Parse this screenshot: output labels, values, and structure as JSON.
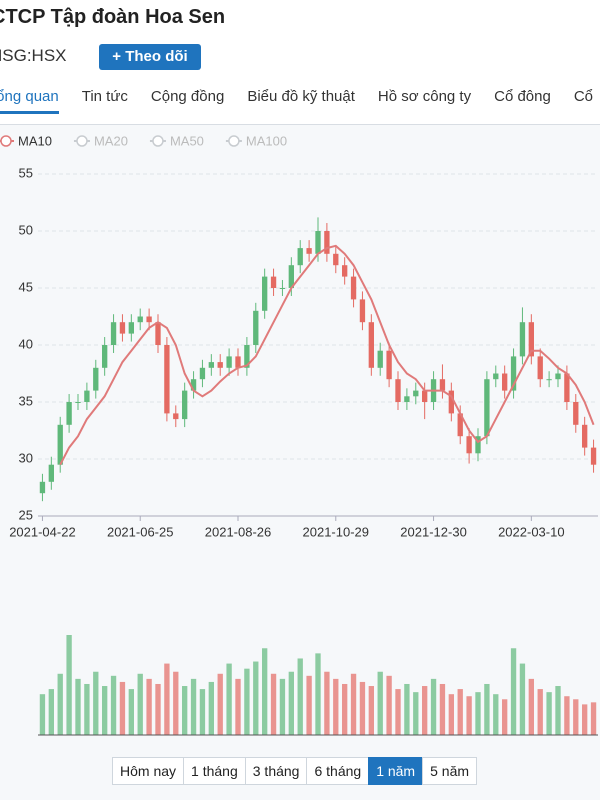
{
  "header": {
    "title": "CTCP Tập đoàn Hoa Sen",
    "ticker": "HSG:HSX",
    "follow_button": "Theo dõi"
  },
  "tabs": {
    "items": [
      "Tổng quan",
      "Tin tức",
      "Cộng đồng",
      "Biểu đồ kỹ thuật",
      "Hồ sơ công ty",
      "Cổ đông",
      "Cổ"
    ],
    "active": 0
  },
  "indicators": [
    {
      "name": "MA10",
      "active": true
    },
    {
      "name": "MA20",
      "active": false
    },
    {
      "name": "MA50",
      "active": false
    },
    {
      "name": "MA100",
      "active": false
    }
  ],
  "chart_data": {
    "type": "candlestick",
    "xlim": [
      -0.5,
      62.5
    ],
    "xticks": [
      {
        "value": 0,
        "label": "2021-04-22"
      },
      {
        "value": 11,
        "label": "2021-06-25"
      },
      {
        "value": 22,
        "label": "2021-08-26"
      },
      {
        "value": 33,
        "label": "2021-10-29"
      },
      {
        "value": 44,
        "label": "2021-12-30"
      },
      {
        "value": 55,
        "label": "2022-03-10"
      }
    ],
    "ylim": [
      25,
      55
    ],
    "yticks": [
      25,
      30,
      35,
      40,
      45,
      50,
      55
    ],
    "grid": true,
    "up_color": "#5fb87a",
    "down_color": "#e46a62",
    "open": [
      27,
      28,
      29.5,
      33,
      35,
      35,
      36,
      38,
      40,
      42,
      41,
      42,
      42.5,
      42,
      40,
      34,
      33.5,
      36,
      37,
      38,
      38.5,
      38,
      39,
      38,
      40,
      43,
      46,
      45,
      45,
      47,
      48.5,
      48,
      50,
      48,
      47,
      46,
      44,
      42,
      38,
      39.5,
      37,
      35,
      35.5,
      36,
      35,
      37,
      36,
      34,
      32,
      30.5,
      32,
      37,
      37.5,
      36,
      39,
      42,
      39,
      37,
      37,
      37.5,
      35,
      33,
      31
    ],
    "high": [
      28.7,
      30.2,
      33.7,
      35.7,
      35.7,
      36.7,
      38.7,
      40.7,
      42.7,
      42.7,
      42.7,
      43.2,
      43.2,
      42.7,
      40.7,
      34.7,
      36.7,
      37.7,
      38.7,
      39.2,
      39.2,
      39.7,
      39.7,
      40.7,
      43.7,
      46.7,
      46.7,
      45.7,
      47.7,
      49.2,
      49.2,
      51.2,
      50.7,
      48.7,
      47.7,
      46.7,
      44.7,
      42.7,
      40.2,
      40.2,
      37.7,
      36.2,
      36.7,
      36.7,
      37.7,
      38.3,
      36.7,
      34.7,
      32.7,
      32.7,
      37.7,
      38.2,
      38.2,
      39.7,
      43.3,
      42.7,
      39.7,
      37.7,
      38.2,
      38.2,
      35.7,
      33.7,
      31.7
    ],
    "low": [
      26.3,
      27.3,
      28.8,
      32.3,
      34.3,
      34.3,
      35.3,
      37.3,
      39.3,
      40.3,
      40.3,
      41.3,
      41.3,
      39.3,
      33.3,
      32.8,
      32.8,
      35.3,
      36.3,
      37.3,
      37.3,
      37.3,
      37.3,
      37.3,
      39.3,
      42.3,
      44.3,
      44.3,
      44.3,
      46.3,
      47.3,
      47.3,
      47.3,
      46.3,
      45.3,
      43.3,
      41.3,
      37.3,
      37.3,
      36.3,
      34.3,
      34.3,
      34.8,
      33.5,
      34.3,
      35.3,
      33.3,
      31.3,
      29.6,
      29.8,
      31.3,
      36.3,
      35.3,
      35.3,
      38.3,
      38.3,
      36.3,
      36.3,
      36.3,
      34.3,
      32.3,
      30.3,
      28.8
    ],
    "close": [
      28,
      29.5,
      33,
      35,
      35,
      36,
      38,
      40,
      42,
      41,
      42,
      42.5,
      42,
      40,
      34,
      33.5,
      36,
      37,
      38,
      38.5,
      38,
      39,
      38,
      40,
      43,
      46,
      45,
      45,
      47,
      48.5,
      48,
      50,
      48,
      47,
      46,
      44,
      42,
      38,
      39.5,
      37,
      35,
      35.5,
      36,
      35,
      37,
      36,
      34,
      32,
      30.5,
      32,
      37,
      37.5,
      36,
      39,
      42,
      39,
      37,
      37,
      37.5,
      35,
      33,
      31,
      29.5
    ],
    "series": [
      {
        "name": "MA10",
        "color": "#e07a7a",
        "values": [
          null,
          null,
          29.5,
          31,
          32,
          33.5,
          34.5,
          35.5,
          37,
          38.5,
          39.5,
          40.5,
          41.5,
          42,
          41.5,
          40,
          37.5,
          36,
          35.5,
          36,
          36.8,
          37.5,
          38,
          38.2,
          39,
          40.5,
          42,
          43.5,
          45,
          46,
          47,
          48,
          48.5,
          48.7,
          48,
          47,
          45.5,
          44,
          42,
          40,
          38.5,
          37.5,
          37,
          36,
          36,
          36,
          35.5,
          34,
          32.5,
          31.5,
          32,
          33.5,
          35,
          36.5,
          38,
          39.5,
          39.5,
          38.8,
          38,
          37.5,
          36.5,
          35,
          33
        ]
      }
    ],
    "volume": [
      40,
      45,
      60,
      98,
      55,
      50,
      62,
      48,
      58,
      52,
      45,
      60,
      55,
      50,
      70,
      62,
      48,
      55,
      45,
      52,
      60,
      70,
      55,
      65,
      72,
      85,
      60,
      55,
      62,
      75,
      58,
      80,
      62,
      55,
      50,
      60,
      52,
      48,
      62,
      58,
      45,
      50,
      42,
      48,
      55,
      50,
      40,
      45,
      38,
      42,
      50,
      40,
      35,
      85,
      70,
      55,
      45,
      42,
      48,
      38,
      35,
      30,
      32
    ]
  },
  "range_buttons": {
    "items": [
      "Hôm nay",
      "1 tháng",
      "3 tháng",
      "6 tháng",
      "1 năm",
      "5 năm"
    ],
    "active": 4
  }
}
